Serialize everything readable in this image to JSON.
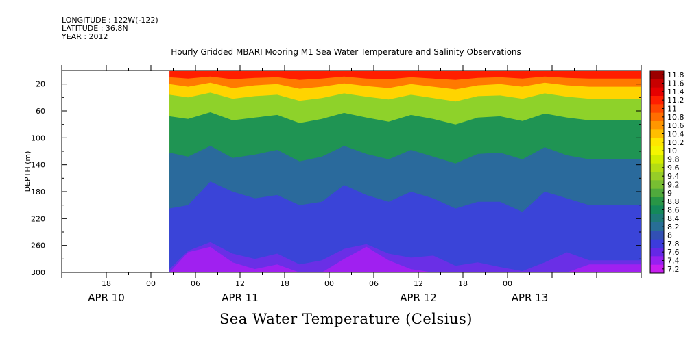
{
  "header": {
    "longitude": "LONGITUDE : 122W(-122)",
    "latitude": "LATITUDE : 36.8N",
    "year": "YEAR : 2012"
  },
  "chart_data": {
    "type": "heatmap",
    "title": "Hourly Gridded MBARI Mooring M1 Sea Water Temperature and Salinity Observations",
    "xlabel": "Sea Water Temperature (Celsius)",
    "ylabel": "DEPTH (m)",
    "x_range_hours": [
      -12,
      66
    ],
    "data_start_hour": 2.5,
    "ylim": [
      300,
      0
    ],
    "y_ticks": [
      20,
      60,
      100,
      140,
      180,
      220,
      260,
      300
    ],
    "x_tick_labels": [
      {
        "hour": -6,
        "label": "18"
      },
      {
        "hour": 0,
        "label": "00"
      },
      {
        "hour": 6,
        "label": "06"
      },
      {
        "hour": 12,
        "label": "12"
      },
      {
        "hour": 18,
        "label": "18"
      },
      {
        "hour": 24,
        "label": "00"
      },
      {
        "hour": 30,
        "label": "06"
      },
      {
        "hour": 36,
        "label": "12"
      },
      {
        "hour": 42,
        "label": "18"
      },
      {
        "hour": 48,
        "label": "00"
      }
    ],
    "date_labels": [
      {
        "hour": -6,
        "label": "APR 10"
      },
      {
        "hour": 12,
        "label": "APR 11"
      },
      {
        "hour": 36,
        "label": "APR 12"
      },
      {
        "hour": 51,
        "label": "APR 13"
      }
    ],
    "colorbar": {
      "levels": [
        "11.8",
        "11.6",
        "11.4",
        "11.2",
        "11",
        "10.8",
        "10.6",
        "10.4",
        "10.2",
        "10",
        "9.8",
        "9.6",
        "9.4",
        "9.2",
        "9",
        "8.8",
        "8.6",
        "8.4",
        "8.2",
        "8",
        "7.8",
        "7.6",
        "7.4",
        "7.2"
      ],
      "colors": [
        "#9b0000",
        "#c80000",
        "#e60000",
        "#ff1e00",
        "#ff4600",
        "#ff6e00",
        "#ff9600",
        "#ffbe00",
        "#ffe600",
        "#f5f500",
        "#d2ec00",
        "#b4dc14",
        "#96cd28",
        "#78be32",
        "#50aa3c",
        "#289646",
        "#14895a",
        "#1e7a78",
        "#286e96",
        "#3250b4",
        "#3c3cdc",
        "#6428e6",
        "#9620f0",
        "#c81ef0"
      ]
    },
    "isotherm_depths_m": {
      "hours": [
        2.5,
        5,
        8,
        11,
        14,
        17,
        20,
        23,
        26,
        29,
        32,
        35,
        38,
        41,
        44,
        47,
        50,
        53,
        56,
        59
      ],
      "t11_4": [
        10,
        12,
        9,
        13,
        11,
        10,
        14,
        12,
        9,
        12,
        13,
        10,
        12,
        14,
        11,
        10,
        12,
        9,
        11,
        12
      ],
      "t10_8": [
        20,
        24,
        18,
        26,
        22,
        20,
        27,
        24,
        19,
        23,
        26,
        20,
        24,
        28,
        22,
        20,
        24,
        18,
        22,
        24
      ],
      "t10": [
        36,
        40,
        33,
        42,
        38,
        36,
        45,
        41,
        34,
        39,
        43,
        36,
        41,
        46,
        38,
        37,
        42,
        34,
        39,
        42
      ],
      "t9": [
        68,
        72,
        62,
        74,
        70,
        66,
        78,
        72,
        63,
        70,
        76,
        66,
        72,
        80,
        70,
        68,
        75,
        64,
        70,
        74
      ],
      "t8_4": [
        122,
        128,
        112,
        130,
        125,
        118,
        135,
        128,
        112,
        124,
        132,
        118,
        128,
        138,
        124,
        122,
        132,
        114,
        126,
        132
      ],
      "t8": [
        205,
        200,
        165,
        180,
        190,
        185,
        200,
        195,
        170,
        185,
        195,
        180,
        190,
        205,
        195,
        195,
        210,
        180,
        190,
        200
      ],
      "t7_6": [
        295,
        268,
        255,
        272,
        280,
        272,
        288,
        282,
        265,
        258,
        272,
        278,
        275,
        290,
        285,
        292,
        298,
        285,
        270,
        282
      ],
      "t7_4": [
        310,
        270,
        262,
        285,
        295,
        288,
        305,
        300,
        280,
        262,
        282,
        295,
        300,
        310,
        302,
        310,
        315,
        305,
        300,
        288
      ]
    }
  }
}
